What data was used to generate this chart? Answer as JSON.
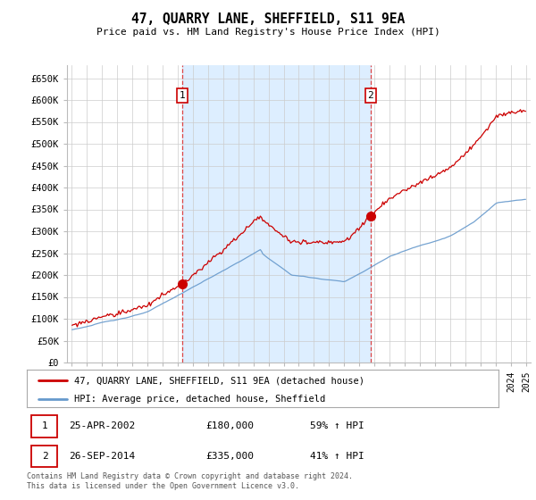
{
  "title": "47, QUARRY LANE, SHEFFIELD, S11 9EA",
  "subtitle": "Price paid vs. HM Land Registry's House Price Index (HPI)",
  "legend_line1": "47, QUARRY LANE, SHEFFIELD, S11 9EA (detached house)",
  "legend_line2": "HPI: Average price, detached house, Sheffield",
  "transaction1_date": "25-APR-2002",
  "transaction1_price": "£180,000",
  "transaction1_hpi": "59% ↑ HPI",
  "transaction2_date": "26-SEP-2014",
  "transaction2_price": "£335,000",
  "transaction2_hpi": "41% ↑ HPI",
  "footnote": "Contains HM Land Registry data © Crown copyright and database right 2024.\nThis data is licensed under the Open Government Licence v3.0.",
  "ylim_min": 0,
  "ylim_max": 680000,
  "yticks": [
    0,
    50000,
    100000,
    150000,
    200000,
    250000,
    300000,
    350000,
    400000,
    450000,
    500000,
    550000,
    600000,
    650000
  ],
  "xlim_min": 1994.7,
  "xlim_max": 2025.3,
  "transaction1_x": 2002.31,
  "transaction1_y": 180000,
  "transaction2_x": 2014.73,
  "transaction2_y": 335000,
  "vline1_x": 2002.31,
  "vline2_x": 2014.73,
  "red_line_color": "#cc0000",
  "blue_line_color": "#6699cc",
  "vline_color": "#dd4444",
  "shade_color": "#ddeeff",
  "background_color": "#ffffff",
  "grid_color": "#cccccc",
  "plot_bg_color": "#ffffff"
}
